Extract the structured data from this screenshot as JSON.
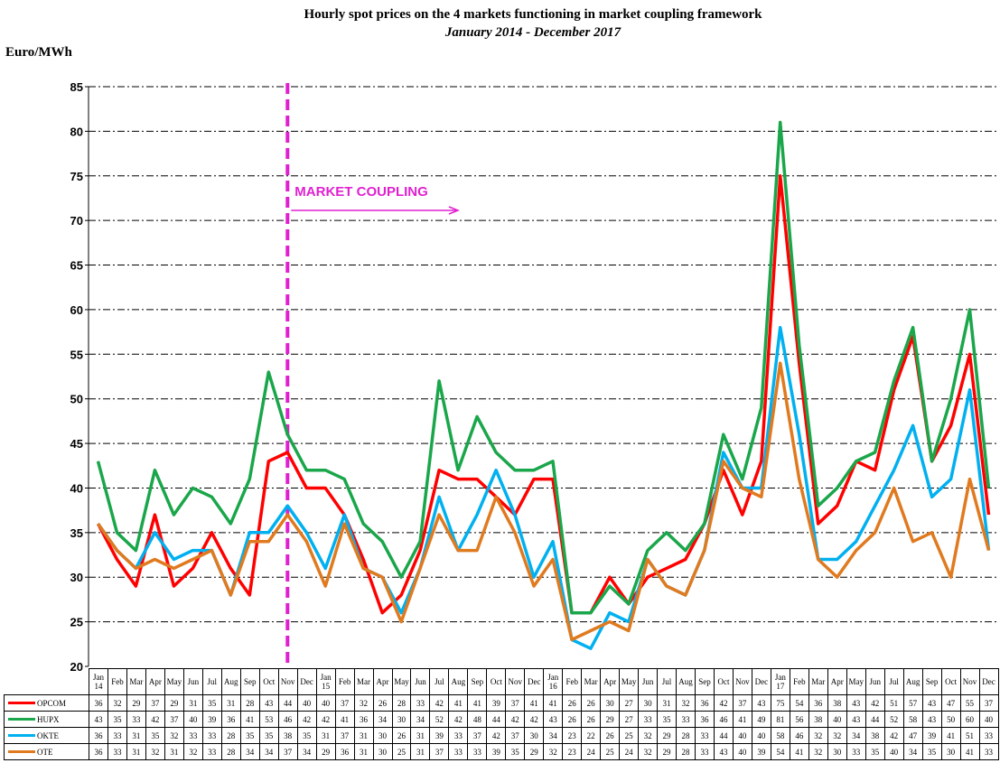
{
  "chart_data": {
    "type": "line",
    "title": "Hourly spot prices on the 4 markets functioning  in market coupling framework",
    "subtitle": "January 2014 - December 2017",
    "y_label": "Euro/MWh",
    "annotation": "MARKET COUPLING",
    "categories": [
      "Jan 14",
      "Feb",
      "Mar",
      "Apr",
      "May",
      "Jun",
      "Jul",
      "Aug",
      "Sep",
      "Oct",
      "Nov",
      "Dec",
      "Jan 15",
      "Feb",
      "Mar",
      "Apr",
      "May",
      "Jun",
      "Jul",
      "Aug",
      "Sep",
      "Oct",
      "Nov",
      "Dec",
      "Jan 16",
      "Feb",
      "Mar",
      "Apr",
      "May",
      "Jun",
      "Jul",
      "Aug",
      "Sep",
      "Oct",
      "Nov",
      "Dec",
      "Jan 17",
      "Feb",
      "Mar",
      "Apr",
      "May",
      "Jun",
      "Jul",
      "Aug",
      "Sep",
      "Oct",
      "Nov",
      "Dec"
    ],
    "series": [
      {
        "name": "OPCOM",
        "color": "#ff0000",
        "values": [
          36,
          32,
          29,
          37,
          29,
          31,
          35,
          31,
          28,
          43,
          44,
          40,
          40,
          37,
          32,
          26,
          28,
          33,
          42,
          41,
          41,
          39,
          37,
          41,
          41,
          26,
          26,
          30,
          27,
          30,
          31,
          32,
          36,
          42,
          37,
          43,
          75,
          54,
          36,
          38,
          43,
          42,
          51,
          57,
          43,
          47,
          55,
          37
        ]
      },
      {
        "name": "HUPX",
        "color": "#1aa64a",
        "values": [
          43,
          35,
          33,
          42,
          37,
          40,
          39,
          36,
          41,
          53,
          46,
          42,
          42,
          41,
          36,
          34,
          30,
          34,
          52,
          42,
          48,
          44,
          42,
          42,
          43,
          26,
          26,
          29,
          27,
          33,
          35,
          33,
          36,
          46,
          41,
          49,
          81,
          56,
          38,
          40,
          43,
          44,
          52,
          58,
          43,
          50,
          60,
          40
        ]
      },
      {
        "name": "OKTE",
        "color": "#00b0f0",
        "values": [
          36,
          33,
          31,
          35,
          32,
          33,
          33,
          28,
          35,
          35,
          38,
          35,
          31,
          37,
          31,
          30,
          26,
          31,
          39,
          33,
          37,
          42,
          37,
          30,
          34,
          23,
          22,
          26,
          25,
          32,
          29,
          28,
          33,
          44,
          40,
          40,
          58,
          46,
          32,
          32,
          34,
          38,
          42,
          47,
          39,
          41,
          51,
          33
        ]
      },
      {
        "name": "OTE",
        "color": "#e07a1f",
        "values": [
          36,
          33,
          31,
          32,
          31,
          32,
          33,
          28,
          34,
          34,
          37,
          34,
          29,
          36,
          31,
          30,
          25,
          31,
          37,
          33,
          33,
          39,
          35,
          29,
          32,
          23,
          24,
          25,
          24,
          32,
          29,
          28,
          33,
          43,
          40,
          39,
          54,
          41,
          32,
          30,
          33,
          35,
          40,
          34,
          35,
          30,
          41,
          33
        ]
      }
    ],
    "ylim": [
      20,
      85
    ],
    "yticks": [
      20,
      25,
      30,
      35,
      40,
      45,
      50,
      55,
      60,
      65,
      70,
      75,
      80,
      85
    ],
    "grid": true
  }
}
